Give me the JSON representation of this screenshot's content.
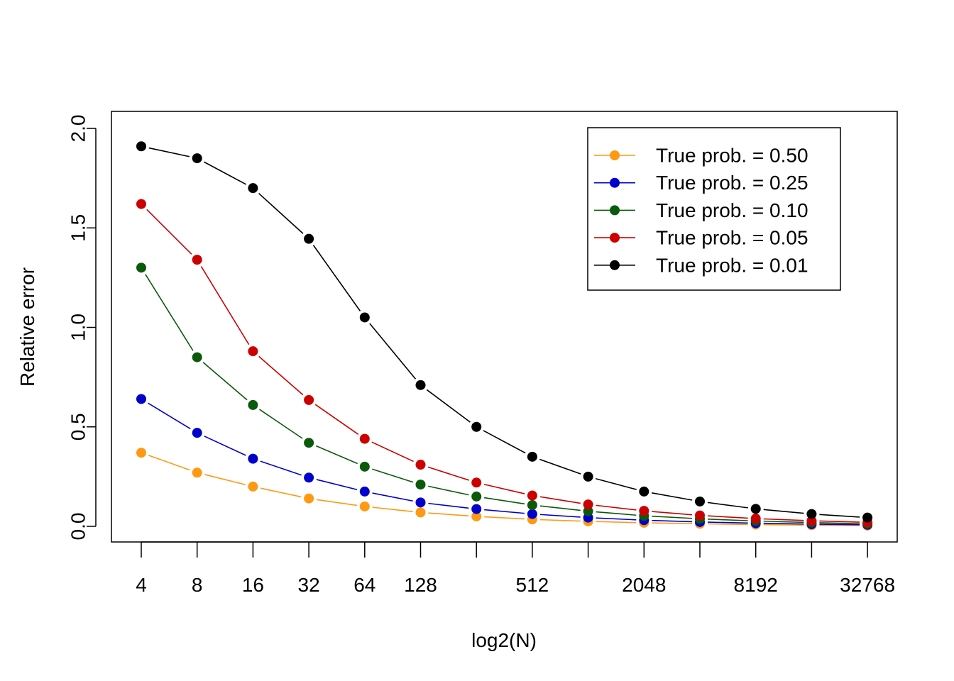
{
  "chart_data": {
    "type": "line",
    "xlabel": "log2(N)",
    "ylabel": "Relative error",
    "x": [
      4,
      8,
      16,
      32,
      64,
      128,
      256,
      512,
      1024,
      2048,
      4096,
      8192,
      16384,
      32768
    ],
    "x_tick_labels": [
      "4",
      "8",
      "16",
      "32",
      "64",
      "128",
      "",
      "512",
      "",
      "2048",
      "",
      "8192",
      "",
      "32768"
    ],
    "x_scale": "log2",
    "y_ticks": [
      "0.0",
      "0.5",
      "1.0",
      "1.5",
      "2.0"
    ],
    "ylim": [
      -0.07,
      2.09
    ],
    "grid": false,
    "legend_position": "top-right",
    "series": [
      {
        "name": "True prob. = 0.50",
        "color": "#FF9912",
        "values": [
          0.37,
          0.27,
          0.2,
          0.14,
          0.1,
          0.07,
          0.05,
          0.035,
          0.025,
          0.018,
          0.013,
          0.009,
          0.006,
          0.004
        ]
      },
      {
        "name": "True prob. = 0.25",
        "color": "#0000CD",
        "values": [
          0.64,
          0.47,
          0.34,
          0.245,
          0.175,
          0.12,
          0.087,
          0.062,
          0.044,
          0.031,
          0.022,
          0.016,
          0.011,
          0.008
        ]
      },
      {
        "name": "True prob. = 0.10",
        "color": "#0B5A0B",
        "values": [
          1.3,
          0.85,
          0.61,
          0.42,
          0.3,
          0.21,
          0.15,
          0.107,
          0.076,
          0.053,
          0.038,
          0.027,
          0.019,
          0.013
        ]
      },
      {
        "name": "True prob. = 0.05",
        "color": "#CC0000",
        "values": [
          1.62,
          1.34,
          0.88,
          0.635,
          0.44,
          0.31,
          0.22,
          0.155,
          0.11,
          0.078,
          0.055,
          0.039,
          0.028,
          0.02
        ]
      },
      {
        "name": "True prob. = 0.01",
        "color": "#000000",
        "values": [
          1.91,
          1.85,
          1.7,
          1.445,
          1.05,
          0.71,
          0.5,
          0.35,
          0.25,
          0.175,
          0.125,
          0.088,
          0.062,
          0.044
        ]
      }
    ]
  }
}
